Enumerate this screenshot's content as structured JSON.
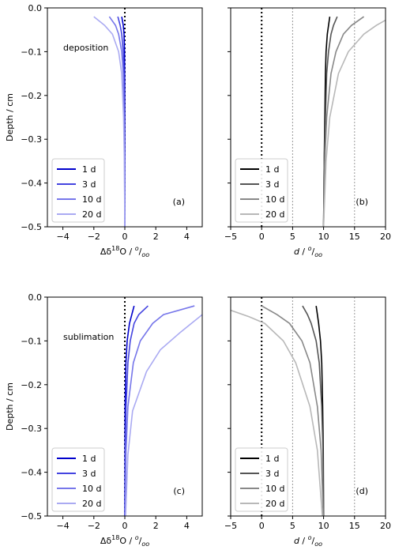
{
  "chart_data": [
    {
      "panel": "a",
      "type": "line",
      "annotation": "deposition",
      "panel_label": "(a)",
      "xlabel_main": "Δδ",
      "xlabel_sup": "18",
      "xlabel_tail": "O / ",
      "unit_sup": "o",
      "unit_sub": "oo",
      "ylabel": "Depth / cm",
      "xlim": [
        -5,
        5
      ],
      "ylim": [
        -0.5,
        0.0
      ],
      "xticks": [
        -4,
        -2,
        0,
        2,
        4
      ],
      "xticklabels": [
        "−4",
        "−2",
        "0",
        "2",
        "4"
      ],
      "yticks": [
        0.0,
        -0.1,
        -0.2,
        -0.3,
        -0.4,
        -0.5
      ],
      "yticklabels": [
        "0.0",
        "−0.1",
        "−0.2",
        "−0.3",
        "−0.4",
        "−0.5"
      ],
      "vlines": [
        {
          "x": 0,
          "style": "dotted-black"
        }
      ],
      "legend_position": "lower-left",
      "series": [
        {
          "name": "1 d",
          "color": "#0000cc",
          "x": [
            -0.2,
            -0.1,
            -0.05,
            -0.02,
            -0.01,
            0,
            0,
            0
          ],
          "y": [
            -0.02,
            -0.04,
            -0.06,
            -0.1,
            -0.15,
            -0.25,
            -0.35,
            -0.5
          ]
        },
        {
          "name": "3 d",
          "color": "#4444e0",
          "x": [
            -0.45,
            -0.3,
            -0.2,
            -0.1,
            -0.05,
            -0.02,
            0,
            0
          ],
          "y": [
            -0.02,
            -0.04,
            -0.06,
            -0.1,
            -0.15,
            -0.25,
            -0.35,
            -0.5
          ]
        },
        {
          "name": "10 d",
          "color": "#7777ea",
          "x": [
            -1.0,
            -0.6,
            -0.4,
            -0.2,
            -0.1,
            -0.05,
            -0.02,
            0
          ],
          "y": [
            -0.02,
            -0.04,
            -0.06,
            -0.1,
            -0.15,
            -0.25,
            -0.35,
            -0.5
          ]
        },
        {
          "name": "20 d",
          "color": "#aaaaf2",
          "x": [
            -2.0,
            -1.3,
            -0.8,
            -0.4,
            -0.2,
            -0.08,
            -0.03,
            0
          ],
          "y": [
            -0.02,
            -0.04,
            -0.06,
            -0.1,
            -0.15,
            -0.25,
            -0.35,
            -0.5
          ]
        }
      ]
    },
    {
      "panel": "b",
      "type": "line",
      "panel_label": "(b)",
      "xlabel_main": "d",
      "xlabel_tail": "  / ",
      "unit_sup": "o",
      "unit_sub": "oo",
      "xlim": [
        -5,
        20
      ],
      "ylim": [
        -0.5,
        0.0
      ],
      "xticks": [
        -5,
        0,
        5,
        10,
        15,
        20
      ],
      "xticklabels": [
        "−5",
        "0",
        "5",
        "10",
        "15",
        "20"
      ],
      "vlines": [
        {
          "x": 0,
          "style": "dotted-black"
        },
        {
          "x": 5,
          "style": "dotted-gray"
        },
        {
          "x": 15,
          "style": "dotted-gray"
        }
      ],
      "legend_position": "lower-left",
      "series": [
        {
          "name": "1 d",
          "color": "#000000",
          "x": [
            11.0,
            10.8,
            10.6,
            10.4,
            10.3,
            10.2,
            10.1,
            10.0
          ],
          "y": [
            -0.02,
            -0.04,
            -0.06,
            -0.1,
            -0.15,
            -0.25,
            -0.35,
            -0.5
          ]
        },
        {
          "name": "3 d",
          "color": "#555555",
          "x": [
            12.2,
            11.6,
            11.2,
            10.8,
            10.5,
            10.3,
            10.1,
            10.0
          ],
          "y": [
            -0.02,
            -0.04,
            -0.06,
            -0.1,
            -0.15,
            -0.25,
            -0.35,
            -0.5
          ]
        },
        {
          "name": "10 d",
          "color": "#888888",
          "x": [
            16.5,
            14.5,
            13.2,
            12.0,
            11.2,
            10.5,
            10.2,
            10.0
          ],
          "y": [
            -0.02,
            -0.04,
            -0.06,
            -0.1,
            -0.15,
            -0.25,
            -0.35,
            -0.5
          ]
        },
        {
          "name": "20 d",
          "color": "#b8b8b8",
          "x": [
            21.0,
            18.5,
            16.5,
            14.0,
            12.4,
            11.0,
            10.4,
            10.0
          ],
          "y": [
            -0.02,
            -0.04,
            -0.06,
            -0.1,
            -0.15,
            -0.25,
            -0.35,
            -0.5
          ]
        }
      ]
    },
    {
      "panel": "c",
      "type": "line",
      "annotation": "sublimation",
      "panel_label": "(c)",
      "xlabel_main": "Δδ",
      "xlabel_sup": "18",
      "xlabel_tail": "O / ",
      "unit_sup": "o",
      "unit_sub": "oo",
      "ylabel": "Depth / cm",
      "xlim": [
        -5,
        5
      ],
      "ylim": [
        -0.5,
        0.0
      ],
      "xticks": [
        -4,
        -2,
        0,
        2,
        4
      ],
      "xticklabels": [
        "−4",
        "−2",
        "0",
        "2",
        "4"
      ],
      "yticks": [
        0.0,
        -0.1,
        -0.2,
        -0.3,
        -0.4,
        -0.5
      ],
      "yticklabels": [
        "0.0",
        "−0.1",
        "−0.2",
        "−0.3",
        "−0.4",
        "−0.5"
      ],
      "vlines": [
        {
          "x": 0,
          "style": "dotted-black"
        }
      ],
      "legend_position": "lower-left",
      "series": [
        {
          "name": "1 d",
          "color": "#0000cc",
          "x": [
            0.6,
            0.45,
            0.3,
            0.15,
            0.07,
            0.02,
            0.01,
            0
          ],
          "y": [
            -0.02,
            -0.04,
            -0.06,
            -0.1,
            -0.15,
            -0.25,
            -0.35,
            -0.5
          ]
        },
        {
          "name": "3 d",
          "color": "#4444e0",
          "x": [
            1.5,
            0.9,
            0.6,
            0.35,
            0.2,
            0.08,
            0.03,
            0
          ],
          "y": [
            -0.02,
            -0.04,
            -0.06,
            -0.1,
            -0.15,
            -0.25,
            -0.35,
            -0.5
          ]
        },
        {
          "name": "10 d",
          "color": "#7777ea",
          "x": [
            4.5,
            2.5,
            1.8,
            1.0,
            0.55,
            0.2,
            0.08,
            0.02
          ],
          "y": [
            -0.02,
            -0.04,
            -0.06,
            -0.1,
            -0.15,
            -0.25,
            -0.35,
            -0.5
          ]
        },
        {
          "name": "20 d",
          "color": "#aaaaf2",
          "x": [
            5.0,
            4.3,
            3.6,
            2.3,
            1.4,
            0.5,
            0.2,
            0.05
          ],
          "y": [
            -0.04,
            -0.06,
            -0.08,
            -0.12,
            -0.17,
            -0.26,
            -0.36,
            -0.5
          ]
        }
      ]
    },
    {
      "panel": "d",
      "type": "line",
      "panel_label": "(d)",
      "xlabel_main": "d",
      "xlabel_tail": "  / ",
      "unit_sup": "o",
      "unit_sub": "oo",
      "xlim": [
        -5,
        20
      ],
      "ylim": [
        -0.5,
        0.0
      ],
      "xticks": [
        -5,
        0,
        5,
        10,
        15,
        20
      ],
      "xticklabels": [
        "−5",
        "0",
        "5",
        "10",
        "15",
        "20"
      ],
      "vlines": [
        {
          "x": 0,
          "style": "dotted-black"
        },
        {
          "x": 5,
          "style": "dotted-gray"
        },
        {
          "x": 15,
          "style": "dotted-gray"
        }
      ],
      "legend_position": "lower-left",
      "series": [
        {
          "name": "1 d",
          "color": "#000000",
          "x": [
            8.8,
            9.0,
            9.2,
            9.5,
            9.7,
            9.85,
            9.95,
            10.0
          ],
          "y": [
            -0.02,
            -0.04,
            -0.06,
            -0.1,
            -0.15,
            -0.25,
            -0.35,
            -0.5
          ]
        },
        {
          "name": "3 d",
          "color": "#555555",
          "x": [
            6.6,
            7.4,
            8.0,
            8.8,
            9.3,
            9.7,
            9.9,
            10.0
          ],
          "y": [
            -0.02,
            -0.04,
            -0.06,
            -0.1,
            -0.15,
            -0.25,
            -0.35,
            -0.5
          ]
        },
        {
          "name": "10 d",
          "color": "#888888",
          "x": [
            0.0,
            2.5,
            4.5,
            6.5,
            7.8,
            9.0,
            9.6,
            9.95
          ],
          "y": [
            -0.02,
            -0.04,
            -0.06,
            -0.1,
            -0.15,
            -0.25,
            -0.35,
            -0.5
          ]
        },
        {
          "name": "20 d",
          "color": "#b8b8b8",
          "x": [
            -5.0,
            -2.0,
            0.5,
            3.5,
            5.5,
            7.8,
            9.0,
            9.8
          ],
          "y": [
            -0.03,
            -0.045,
            -0.06,
            -0.1,
            -0.15,
            -0.25,
            -0.35,
            -0.5
          ]
        }
      ]
    }
  ]
}
